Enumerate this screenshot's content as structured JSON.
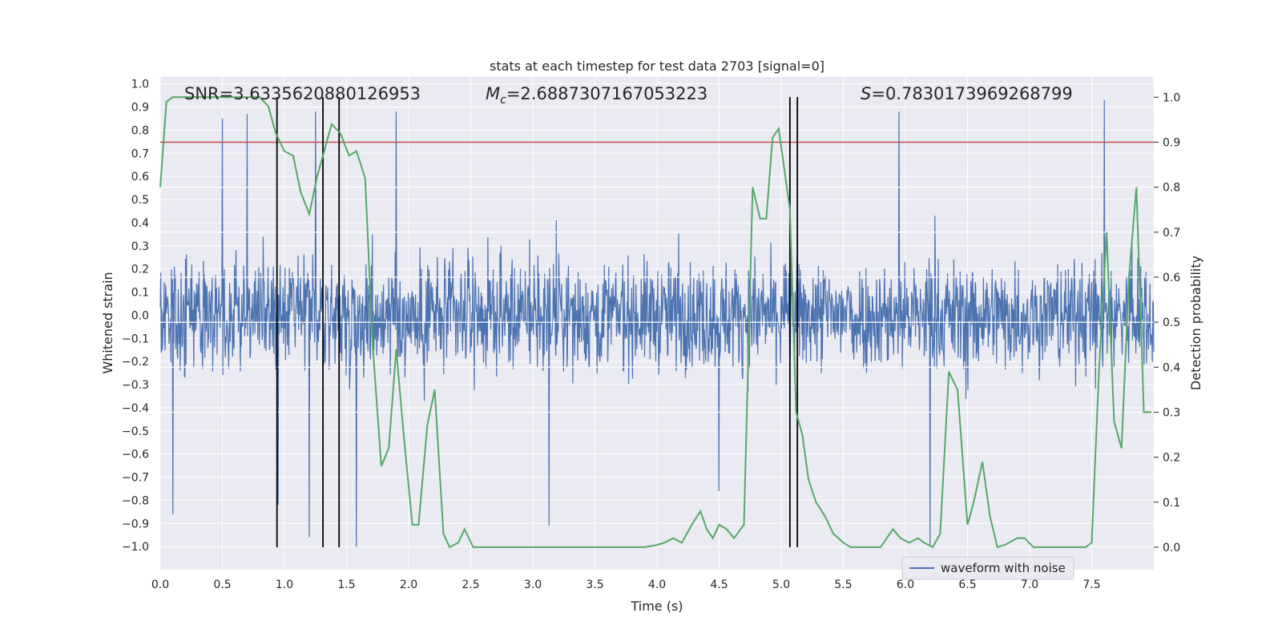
{
  "chart_data": {
    "type": "line",
    "title": "stats at each timestep for test data 2703 [signal=0]",
    "xlabel": "Time (s)",
    "ylabel_left": "Whitened strain",
    "ylabel_right": "Detection probability",
    "xlim": [
      0.0,
      8.0
    ],
    "ylim_left": [
      -1.1,
      1.03
    ],
    "ylim_right": [
      -0.05,
      1.045
    ],
    "x_ticks": [
      "0.0",
      "0.5",
      "1.0",
      "1.5",
      "2.0",
      "2.5",
      "3.0",
      "3.5",
      "4.0",
      "4.5",
      "5.0",
      "5.5",
      "6.0",
      "6.5",
      "7.0",
      "7.5"
    ],
    "y_left_ticks": [
      "1.0",
      "0.9",
      "0.8",
      "0.7",
      "0.6",
      "0.5",
      "0.4",
      "0.3",
      "0.2",
      "0.1",
      "0.0",
      "−0.1",
      "−0.2",
      "−0.3",
      "−0.4",
      "−0.5",
      "−0.6",
      "−0.7",
      "−0.8",
      "−0.9",
      "−1.0"
    ],
    "y_right_ticks": [
      "1.0",
      "0.9",
      "0.8",
      "0.7",
      "0.6",
      "0.5",
      "0.4",
      "0.3",
      "0.2",
      "0.1",
      "0.0"
    ],
    "annotations": {
      "snr": "SNR=3.6335620880126953",
      "mc_symbol": "M",
      "mc_sub": "c",
      "mc_value": "=2.6887307167053223",
      "s_symbol": "S",
      "s_value": "=0.7830173969268799"
    },
    "threshold": {
      "value": 0.9,
      "color": "#c44e52"
    },
    "event_markers_s": [
      0.94,
      1.31,
      1.44,
      5.07,
      5.13
    ],
    "legend": {
      "label": "waveform with noise",
      "location": "lower-right"
    },
    "series": [
      {
        "name": "waveform with noise",
        "axis": "left",
        "color": "#4c72b0",
        "n_samples": 2048,
        "typical_range": [
          -0.45,
          0.45
        ],
        "peaks": [
          {
            "t": 0.1,
            "v": -0.86
          },
          {
            "t": 0.5,
            "v": 0.85
          },
          {
            "t": 0.7,
            "v": 0.87
          },
          {
            "t": 0.95,
            "v": -0.82
          },
          {
            "t": 1.2,
            "v": -0.96
          },
          {
            "t": 1.25,
            "v": 0.88
          },
          {
            "t": 1.58,
            "v": -1.0
          },
          {
            "t": 1.9,
            "v": 0.88
          },
          {
            "t": 3.13,
            "v": -0.91
          },
          {
            "t": 4.5,
            "v": -0.76
          },
          {
            "t": 5.95,
            "v": 0.88
          },
          {
            "t": 6.2,
            "v": -1.0
          },
          {
            "t": 7.6,
            "v": 0.93
          }
        ]
      },
      {
        "name": "detection probability",
        "axis": "right",
        "color": "#55a868",
        "x": [
          0.0,
          0.05,
          0.1,
          0.2,
          0.3,
          0.4,
          0.5,
          0.6,
          0.7,
          0.8,
          0.87,
          0.93,
          1.0,
          1.07,
          1.13,
          1.2,
          1.26,
          1.33,
          1.38,
          1.45,
          1.52,
          1.58,
          1.65,
          1.71,
          1.78,
          1.84,
          1.9,
          1.96,
          2.03,
          2.08,
          2.15,
          2.21,
          2.28,
          2.33,
          2.4,
          2.45,
          2.52,
          2.65,
          2.85,
          3.1,
          3.25,
          3.5,
          3.7,
          3.9,
          4.0,
          4.06,
          4.13,
          4.2,
          4.28,
          4.35,
          4.4,
          4.45,
          4.5,
          4.56,
          4.62,
          4.7,
          4.77,
          4.83,
          4.88,
          4.93,
          4.98,
          5.02,
          5.07,
          5.12,
          5.17,
          5.22,
          5.28,
          5.35,
          5.42,
          5.5,
          5.56,
          5.62,
          5.7,
          5.8,
          5.9,
          5.96,
          6.03,
          6.1,
          6.15,
          6.22,
          6.28,
          6.35,
          6.42,
          6.5,
          6.55,
          6.62,
          6.68,
          6.74,
          6.8,
          6.9,
          6.96,
          7.03,
          7.1,
          7.2,
          7.3,
          7.38,
          7.45,
          7.5,
          7.56,
          7.62,
          7.68,
          7.74,
          7.8,
          7.86,
          7.92,
          7.98
        ],
        "y": [
          0.8,
          0.99,
          1.0,
          1.0,
          1.0,
          1.0,
          1.0,
          1.0,
          1.0,
          1.0,
          0.98,
          0.92,
          0.88,
          0.87,
          0.79,
          0.74,
          0.82,
          0.89,
          0.94,
          0.92,
          0.87,
          0.88,
          0.82,
          0.45,
          0.18,
          0.22,
          0.44,
          0.25,
          0.05,
          0.05,
          0.27,
          0.35,
          0.03,
          0.0,
          0.01,
          0.04,
          0.0,
          0.0,
          0.0,
          0.0,
          0.0,
          0.0,
          0.0,
          0.0,
          0.005,
          0.01,
          0.02,
          0.01,
          0.05,
          0.08,
          0.04,
          0.02,
          0.05,
          0.04,
          0.02,
          0.05,
          0.8,
          0.73,
          0.73,
          0.91,
          0.93,
          0.85,
          0.75,
          0.3,
          0.25,
          0.15,
          0.1,
          0.07,
          0.03,
          0.01,
          0.0,
          0.0,
          0.0,
          0.0,
          0.04,
          0.02,
          0.01,
          0.02,
          0.01,
          0.0,
          0.03,
          0.39,
          0.35,
          0.05,
          0.1,
          0.19,
          0.07,
          0.0,
          0.005,
          0.02,
          0.02,
          0.0,
          0.0,
          0.0,
          0.0,
          0.0,
          0.0,
          0.01,
          0.4,
          0.7,
          0.28,
          0.22,
          0.6,
          0.8,
          0.3,
          0.3
        ]
      }
    ]
  }
}
